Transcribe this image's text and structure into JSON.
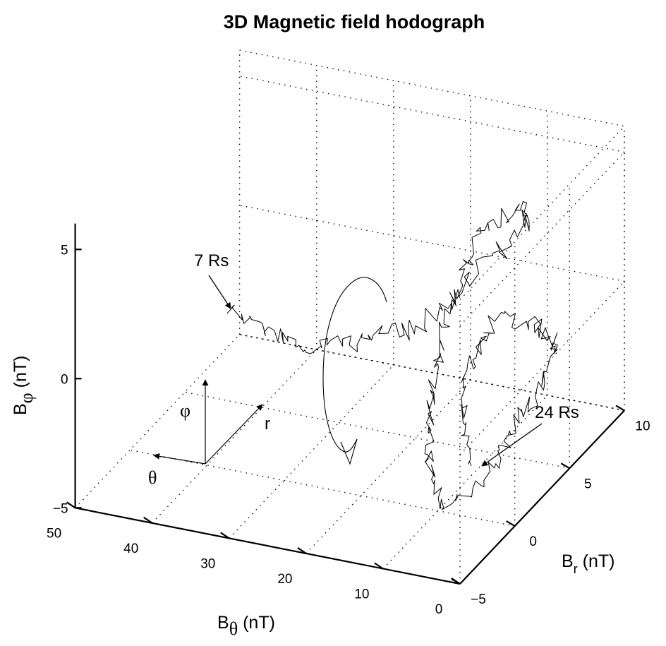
{
  "chart_data": {
    "type": "line",
    "title": "3D Magnetic field hodograph",
    "axes": {
      "x": {
        "name": "B_theta",
        "label": "B",
        "label_sub": "θ",
        "label_unit": " (nT)",
        "range": [
          0,
          50
        ],
        "ticks": [
          0,
          10,
          20,
          30,
          40,
          50
        ]
      },
      "y": {
        "name": "B_r",
        "label": "B",
        "label_sub": "r",
        "label_unit": " (nT)",
        "range": [
          -5,
          10
        ],
        "ticks": [
          -5,
          0,
          5,
          10
        ]
      },
      "z": {
        "name": "B_phi",
        "label": "B",
        "label_sub": "φ",
        "label_unit": " (nT)",
        "range": [
          -5,
          6
        ],
        "ticks": [
          -5,
          0,
          5
        ]
      }
    },
    "grid": true,
    "annotations": [
      {
        "text": "7 Rs"
      },
      {
        "text": "24 Rs"
      }
    ],
    "direction_glyph": {
      "phi": "φ",
      "r": "r",
      "theta": "θ"
    }
  }
}
